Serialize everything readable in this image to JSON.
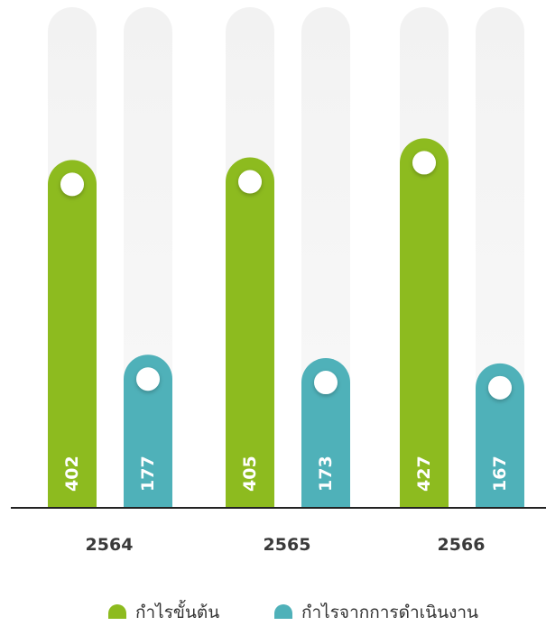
{
  "chart_data": {
    "type": "bar",
    "categories": [
      "2564",
      "2565",
      "2566"
    ],
    "series": [
      {
        "name": "กำไรขั้นต้น",
        "values": [
          402,
          405,
          427
        ],
        "color": "#8dbb1f"
      },
      {
        "name": "กำไรจากการดำเนินงาน",
        "values": [
          177,
          173,
          167
        ],
        "color": "#4fb1b9"
      }
    ],
    "ylim": [
      0,
      490
    ],
    "grid": false,
    "legend": "bottom-center",
    "data_labels": "rotated-inside-bar-bottom",
    "track_color": "#efefef",
    "axis_color": "#222222"
  }
}
